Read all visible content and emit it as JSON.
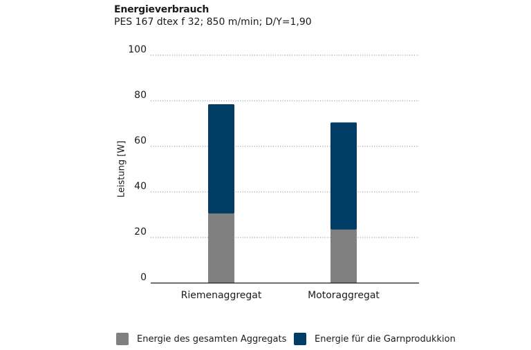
{
  "chart_data": {
    "type": "bar",
    "stacked": true,
    "title": "Energieverbrauch",
    "subtitle": "PES 167 dtex f 32; 850 m/min; D/Y=1,90",
    "ylabel": "Leistung [W]",
    "xlabel": "",
    "ylim": [
      0,
      100
    ],
    "yticks": [
      0,
      20,
      40,
      60,
      80,
      100
    ],
    "grid": true,
    "legend_position": "bottom",
    "categories": [
      "Riemenaggregat",
      "Motoraggregat"
    ],
    "series": [
      {
        "name": "Energie des gesamten Aggregats",
        "color": "#808080",
        "values": [
          30.5,
          23.5
        ]
      },
      {
        "name": "Energie für die Garnprodukkion",
        "color": "#003c64",
        "values": [
          48,
          47
        ]
      }
    ]
  }
}
